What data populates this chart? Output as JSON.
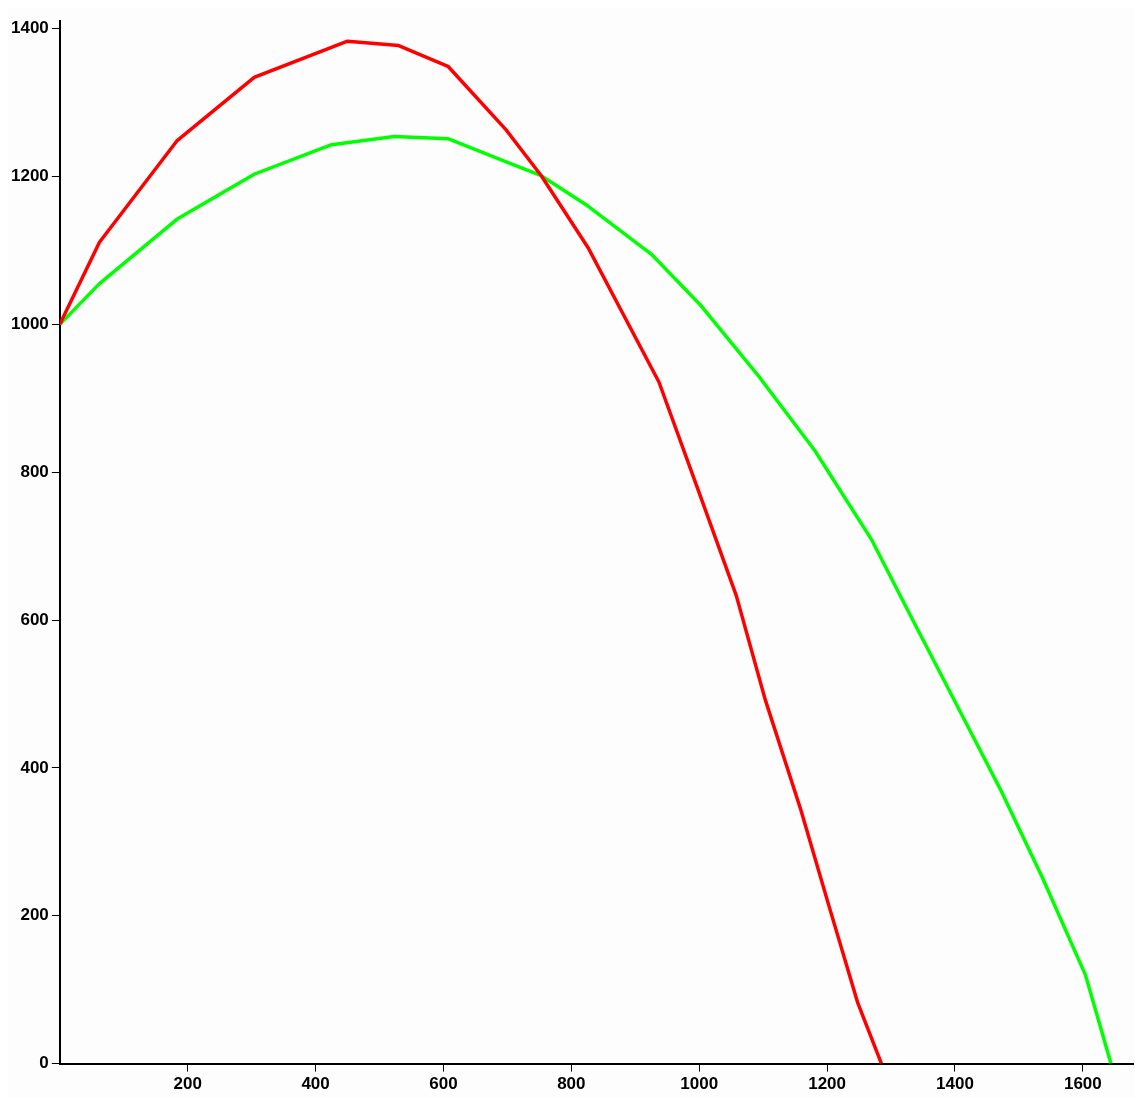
{
  "chart_data": {
    "type": "line",
    "marker": "none",
    "grid": false,
    "legend": false,
    "xlim": [
      0,
      1680
    ],
    "xticks": [
      200,
      400,
      600,
      800,
      1000,
      1200,
      1400,
      1600
    ],
    "ylim": [
      0,
      1410
    ],
    "yticks": [
      0,
      200,
      400,
      600,
      800,
      1000,
      1200,
      1400
    ],
    "series": [
      {
        "color": "#ff0000",
        "x": [
          0,
          62,
          183,
          304,
          450,
          530,
          607,
          698,
          753,
          826,
          937,
          1000,
          1058,
          1103,
          1159,
          1203,
          1248,
          1285
        ],
        "values": [
          1000,
          1111,
          1248,
          1334,
          1383,
          1377,
          1349,
          1263,
          1201,
          1104,
          922,
          772,
          633,
          493,
          343,
          213,
          82,
          0
        ]
      },
      {
        "color": "#00ff00",
        "x": [
          0,
          62,
          183,
          304,
          425,
          523,
          607,
          753,
          826,
          925,
          1003,
          1092,
          1181,
          1270,
          1337,
          1404,
          1471,
          1537,
          1604,
          1644
        ],
        "values": [
          1000,
          1055,
          1142,
          1203,
          1243,
          1254,
          1251,
          1201,
          1160,
          1095,
          1025,
          931,
          829,
          708,
          595,
          483,
          371,
          251,
          120,
          0
        ]
      }
    ]
  }
}
